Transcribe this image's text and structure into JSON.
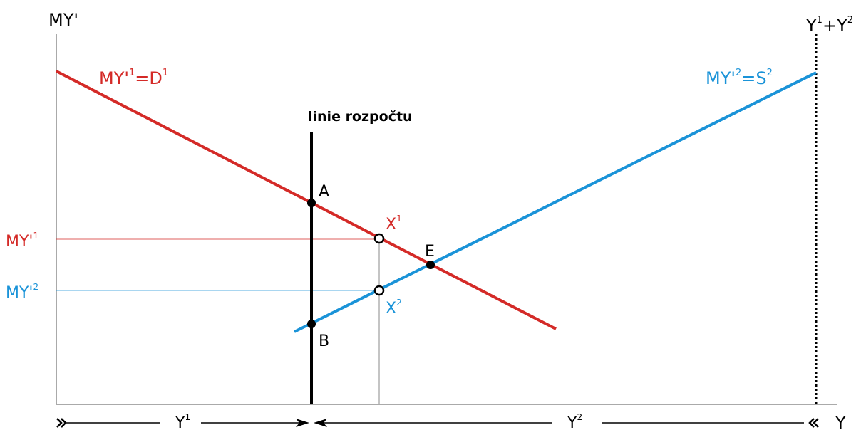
{
  "axes": {
    "y_label": "MY'",
    "x_label": "Y",
    "total_label": "Y",
    "total_sup1": "1",
    "total_plus": "+Y",
    "total_sup2": "2"
  },
  "budget_line_label": "linie rozpočtu",
  "curves": {
    "d1": {
      "label": "MY'",
      "sup": "1",
      "eq": "=D",
      "eq_sup": "1",
      "color": "#d42a27"
    },
    "s2": {
      "label": "MY'",
      "sup": "2",
      "eq": "=S",
      "eq_sup": "2",
      "color": "#1a93d8"
    }
  },
  "points": {
    "A": "A",
    "B": "B",
    "E": "E",
    "X1": "X",
    "X1_sup": "1",
    "X2": "X",
    "X2_sup": "2"
  },
  "levels": {
    "my1": {
      "label": "MY'",
      "sup": "1"
    },
    "my2": {
      "label": "MY'",
      "sup": "2"
    }
  },
  "segments": {
    "y1": {
      "label": "Y",
      "sup": "1"
    },
    "y2": {
      "label": "Y",
      "sup": "2"
    }
  },
  "colors": {
    "axis": "#000000",
    "guide": "#888888",
    "red": "#d42a27",
    "blue": "#1a93d8"
  }
}
